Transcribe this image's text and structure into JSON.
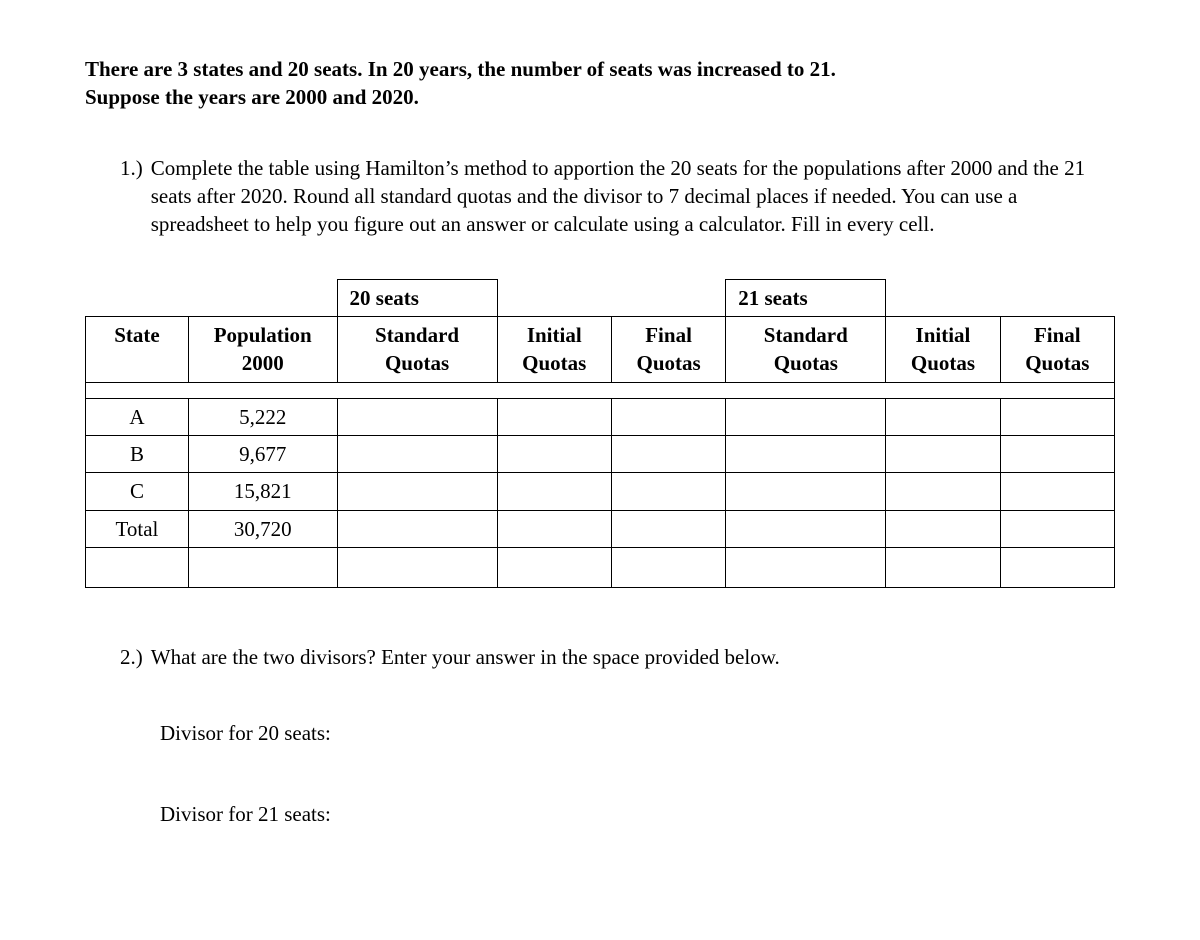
{
  "intro": {
    "line1": "There are 3 states and 20 seats. In 20 years, the number of seats was increased to 21.",
    "line2": "Suppose the years are 2000 and 2020."
  },
  "q1": {
    "number": "1.)",
    "text": "Complete the table using Hamilton’s method to apportion the 20 seats for the populations after 2000 and the 21 seats after 2020. Round all standard quotas and the divisor to 7 decimal places if needed. You can use a spreadsheet to help you figure out an answer or calculate using a calculator. Fill in every cell."
  },
  "table": {
    "top_labels": {
      "seats20": "20 seats",
      "seats21": "21 seats"
    },
    "cols": {
      "state": "State",
      "population": "Population 2000",
      "std_quotas": "Standard Quotas",
      "init_quotas": "Initial Quotas",
      "final_quotas": "Final Quotas"
    },
    "rows": {
      "a": {
        "state": "A",
        "pop": "5,222"
      },
      "b": {
        "state": "B",
        "pop": "9,677"
      },
      "c": {
        "state": "C",
        "pop": "15,821"
      },
      "total": {
        "state": "Total",
        "pop": "30,720"
      }
    }
  },
  "q2": {
    "number": "2.)",
    "text": "What are the two divisors? Enter your answer in the space provided below."
  },
  "divisors": {
    "d20": "Divisor for 20 seats:",
    "d21": "Divisor for 21 seats:"
  }
}
